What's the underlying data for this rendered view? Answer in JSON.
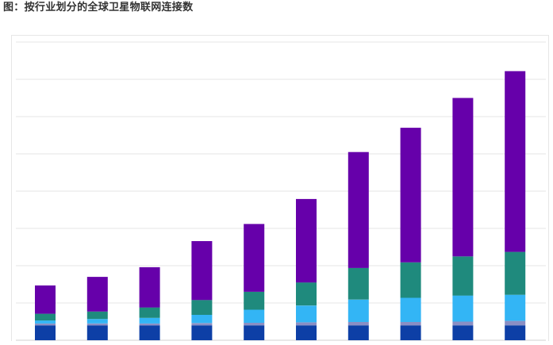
{
  "title": "图：按行业划分的全球卫星物联网连接数",
  "chart_data": {
    "type": "bar",
    "stacked": true,
    "categories": [
      "",
      "",
      "",
      "",
      "",
      "",
      "",
      "",
      "",
      ""
    ],
    "ylim": [
      0,
      8
    ],
    "grid": true,
    "legend": "none",
    "series": [
      {
        "color": "#0d3fa6",
        "values": [
          0.4,
          0.4,
          0.4,
          0.4,
          0.4,
          0.4,
          0.4,
          0.4,
          0.4,
          0.4
        ]
      },
      {
        "color": "#8a8fc4",
        "values": [
          0.05,
          0.05,
          0.05,
          0.06,
          0.07,
          0.08,
          0.09,
          0.09,
          0.1,
          0.12
        ]
      },
      {
        "color": "#33b5f5",
        "values": [
          0.08,
          0.12,
          0.15,
          0.22,
          0.35,
          0.45,
          0.6,
          0.65,
          0.7,
          0.7
        ]
      },
      {
        "color": "#1f8a7d",
        "values": [
          0.18,
          0.2,
          0.28,
          0.4,
          0.48,
          0.62,
          0.85,
          0.95,
          1.05,
          1.15
        ]
      },
      {
        "color": "#6600aa",
        "values": [
          0.76,
          0.93,
          1.08,
          1.58,
          1.82,
          2.24,
          3.11,
          3.61,
          4.25,
          4.85
        ]
      }
    ]
  }
}
